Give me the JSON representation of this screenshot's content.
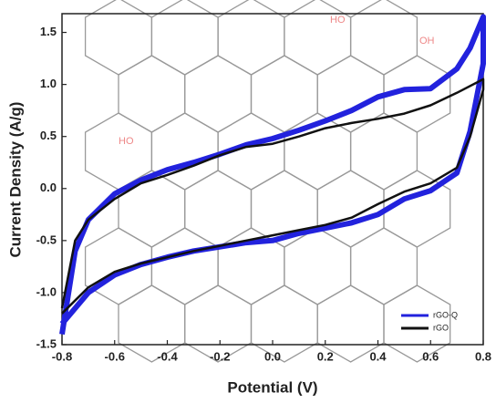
{
  "chart_data": {
    "type": "line",
    "xlabel": "Potential (V)",
    "ylabel": "Current  Density (A/g)",
    "xlim": [
      -0.8,
      0.8
    ],
    "xticks": [
      -0.8,
      -0.6,
      -0.4,
      -0.2,
      {
        "value": 0,
        "label": "0.0"
      },
      0.2,
      0.4,
      0.6,
      0.8
    ],
    "ylim": [
      -1.5,
      1.68
    ],
    "yticks": [
      -1.5,
      {
        "value": -1,
        "label": "-1.0"
      },
      -0.5,
      {
        "value": 0,
        "label": "0.0"
      },
      0.5,
      {
        "value": 1,
        "label": "1.0"
      },
      1.5
    ],
    "legend": "lower right",
    "annotations": [
      "HO",
      "OH",
      "HO"
    ],
    "series": [
      {
        "name": "rGO-Q",
        "color": "#2222dd",
        "x": [
          -0.8,
          -0.75,
          -0.7,
          -0.6,
          -0.5,
          -0.4,
          -0.3,
          -0.2,
          -0.1,
          0.0,
          0.1,
          0.2,
          0.3,
          0.4,
          0.5,
          0.6,
          0.7,
          0.75,
          0.8,
          0.8,
          0.75,
          0.7,
          0.6,
          0.5,
          0.4,
          0.3,
          0.2,
          0.1,
          0.0,
          -0.1,
          -0.2,
          -0.3,
          -0.4,
          -0.5,
          -0.6,
          -0.7,
          -0.8
        ],
        "values": [
          -1.4,
          -0.6,
          -0.3,
          -0.05,
          0.08,
          0.18,
          0.25,
          0.33,
          0.42,
          0.48,
          0.56,
          0.65,
          0.75,
          0.88,
          0.95,
          0.96,
          1.15,
          1.35,
          1.65,
          1.2,
          0.55,
          0.15,
          -0.02,
          -0.1,
          -0.25,
          -0.33,
          -0.38,
          -0.43,
          -0.5,
          -0.52,
          -0.56,
          -0.6,
          -0.66,
          -0.73,
          -0.83,
          -1.0,
          -1.3
        ]
      },
      {
        "name": "rGO",
        "color": "#111111",
        "x": [
          -0.8,
          -0.75,
          -0.7,
          -0.6,
          -0.5,
          -0.4,
          -0.3,
          -0.2,
          -0.1,
          0.0,
          0.1,
          0.2,
          0.3,
          0.4,
          0.5,
          0.6,
          0.7,
          0.8,
          0.8,
          0.75,
          0.7,
          0.6,
          0.5,
          0.4,
          0.3,
          0.2,
          0.1,
          0.0,
          -0.1,
          -0.2,
          -0.3,
          -0.4,
          -0.5,
          -0.6,
          -0.7,
          -0.8
        ],
        "values": [
          -1.15,
          -0.5,
          -0.3,
          -0.1,
          0.05,
          0.13,
          0.22,
          0.32,
          0.4,
          0.43,
          0.5,
          0.58,
          0.63,
          0.67,
          0.72,
          0.8,
          0.92,
          1.05,
          0.95,
          0.5,
          0.2,
          0.05,
          -0.03,
          -0.15,
          -0.28,
          -0.35,
          -0.4,
          -0.45,
          -0.5,
          -0.55,
          -0.6,
          -0.66,
          -0.72,
          -0.8,
          -0.95,
          -1.2
        ]
      }
    ]
  }
}
